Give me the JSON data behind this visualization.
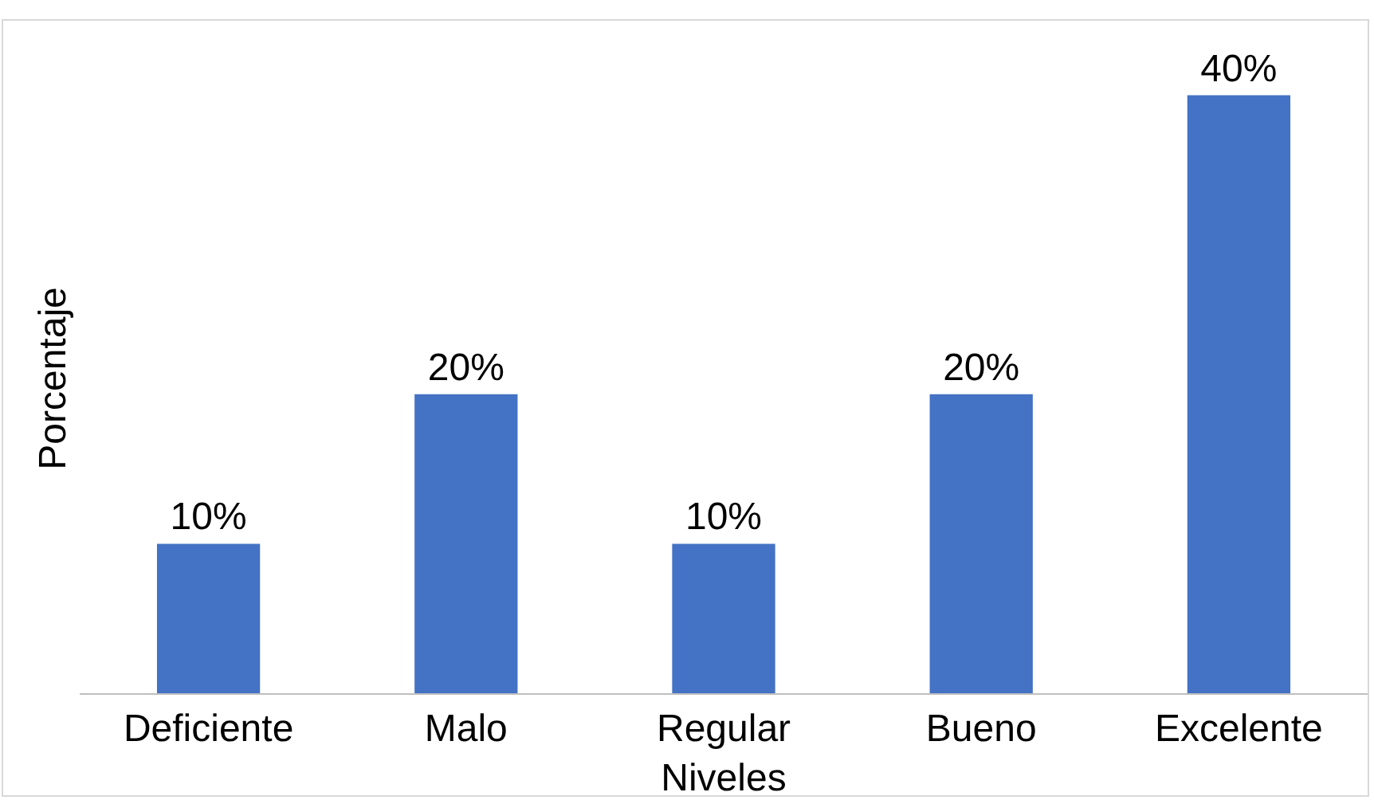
{
  "chart_data": {
    "type": "bar",
    "xlabel": "Niveles",
    "ylabel": "Porcentaje",
    "categories": [
      "Deficiente",
      "Malo",
      "Regular",
      "Bueno",
      "Excelente"
    ],
    "values": [
      10,
      20,
      10,
      20,
      40
    ],
    "value_labels": [
      "10%",
      "20%",
      "10%",
      "20%",
      "40%"
    ],
    "color": "#4472c4"
  }
}
